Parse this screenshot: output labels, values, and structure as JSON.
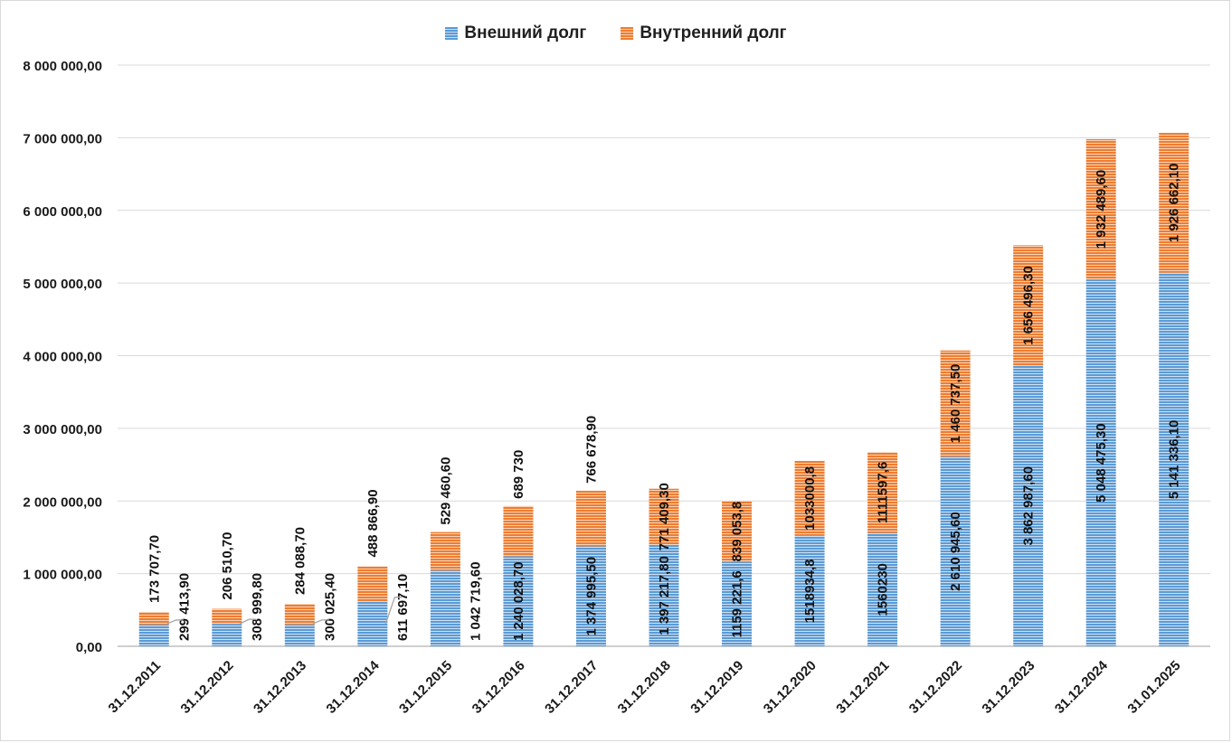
{
  "chart_data": {
    "type": "bar",
    "stacked": true,
    "categories": [
      "31.12.2011",
      "31.12.2012",
      "31.12.2013",
      "31.12.2014",
      "31.12.2015",
      "31.12.2016",
      "31.12.2017",
      "31.12.2018",
      "31.12.2019",
      "31.12.2020",
      "31.12.2021",
      "31.12.2022",
      "31.12.2023",
      "31.12.2024",
      "31.01.2025"
    ],
    "series": [
      {
        "name": "Внешний долг",
        "color": "#5b9bd5",
        "values": [
          299413.9,
          308999.8,
          300025.4,
          611697.1,
          1042719.6,
          1240028.7,
          1374995.5,
          1397217.8,
          1159221.6,
          1518934.8,
          1560230,
          2610945.6,
          3862987.6,
          5048475.3,
          5141336.1
        ],
        "labels": [
          "299 413,90",
          "308 999,80",
          "300 025,40",
          "611 697,10",
          "1 042 719,60",
          "1 240 028,70",
          "1 374 995,50",
          "1 397 217,80",
          "1159 221,6",
          "1518934,8",
          "1560230",
          "2 610 945,60",
          "3 862 987,60",
          "5 048 475,30",
          "5 141 336,10"
        ]
      },
      {
        "name": "Внутренний долг",
        "color": "#ed7d31",
        "values": [
          173707.7,
          206510.7,
          284088.7,
          488866.9,
          529460.6,
          689730,
          766678.9,
          771409.3,
          839053.8,
          1033000.8,
          1111597.6,
          1460737.5,
          1656496.3,
          1932489.6,
          1926662.1
        ],
        "labels": [
          "173 707,70",
          "206 510,70",
          "284 088,70",
          "488 866,90",
          "529 460,60",
          "689 730",
          "766 678,90",
          "771 409,30",
          "839 053,8",
          "1033000,8",
          "1111597,6",
          "1 460 737,50",
          "1 656 496,30",
          "1 932 489,60",
          "1 926 662,10"
        ]
      }
    ],
    "ylim": [
      0,
      8000000
    ],
    "yticks": [
      "0,00",
      "1 000 000,00",
      "2 000 000,00",
      "3 000 000,00",
      "4 000 000,00",
      "5 000 000,00",
      "6 000 000,00",
      "7 000 000,00",
      "8 000 000,00"
    ],
    "grid": true,
    "legend_position": "top"
  }
}
